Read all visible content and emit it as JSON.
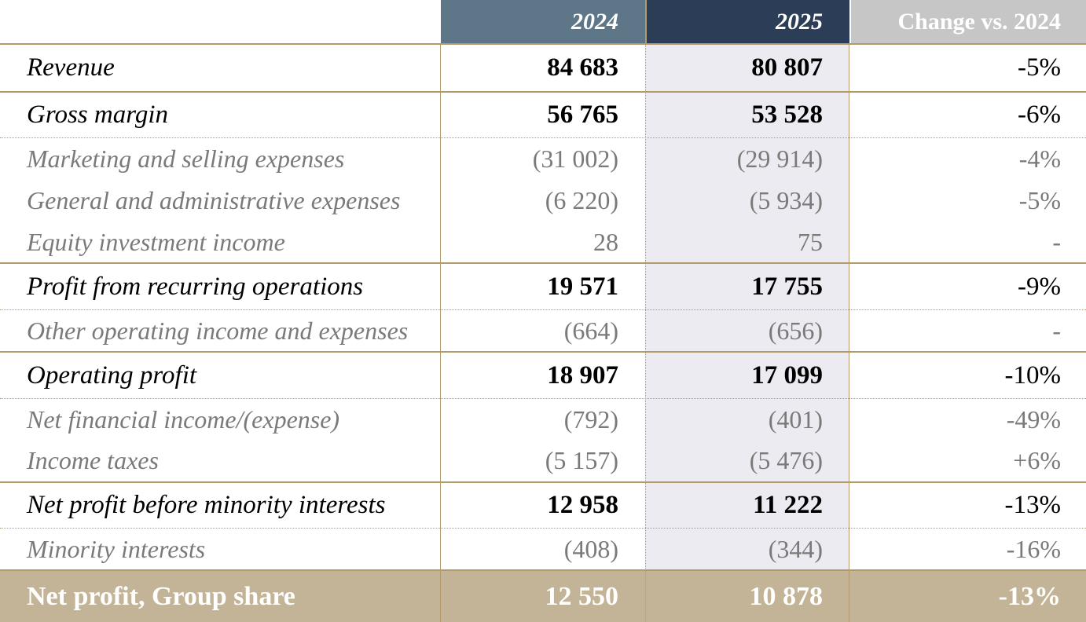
{
  "header": {
    "col_2024": "2024",
    "col_2025": "2025",
    "col_change": "Change vs. 2024"
  },
  "rows": [
    {
      "label": "Revenue",
      "v2024": "84 683",
      "v2025": "80 807",
      "change": "-5%"
    },
    {
      "label": "Gross margin",
      "v2024": "56 765",
      "v2025": "53 528",
      "change": "-6%"
    },
    {
      "label": "Marketing and selling expenses",
      "v2024": "(31 002)",
      "v2025": "(29 914)",
      "change": "-4%"
    },
    {
      "label": "General and administrative expenses",
      "v2024": "(6 220)",
      "v2025": "(5 934)",
      "change": "-5%"
    },
    {
      "label": "Equity investment income",
      "v2024": "28",
      "v2025": "75",
      "change": "-"
    },
    {
      "label": "Profit from recurring operations",
      "v2024": "19 571",
      "v2025": "17 755",
      "change": "-9%"
    },
    {
      "label": "Other operating income and expenses",
      "v2024": "(664)",
      "v2025": "(656)",
      "change": "-"
    },
    {
      "label": "Operating profit",
      "v2024": "18 907",
      "v2025": "17 099",
      "change": "-10%"
    },
    {
      "label": "Net financial income/(expense)",
      "v2024": "(792)",
      "v2025": "(401)",
      "change": "-49%"
    },
    {
      "label": "Income taxes",
      "v2024": "(5 157)",
      "v2025": "(5 476)",
      "change": "+6%"
    },
    {
      "label": "Net profit before minority interests",
      "v2024": "12 958",
      "v2025": "11 222",
      "change": "-13%"
    },
    {
      "label": "Minority interests",
      "v2024": "(408)",
      "v2025": "(344)",
      "change": "-16%"
    },
    {
      "label": "Net profit, Group share",
      "v2024": "12 550",
      "v2025": "10 878",
      "change": "-13%"
    }
  ],
  "colors": {
    "header_2024": "#5d7688",
    "header_2025": "#2c3e57",
    "header_change": "#c6c6c6",
    "rule": "#b39a6a",
    "total_row": "#c3b497",
    "col_2025_shade": "#ebebf1"
  }
}
